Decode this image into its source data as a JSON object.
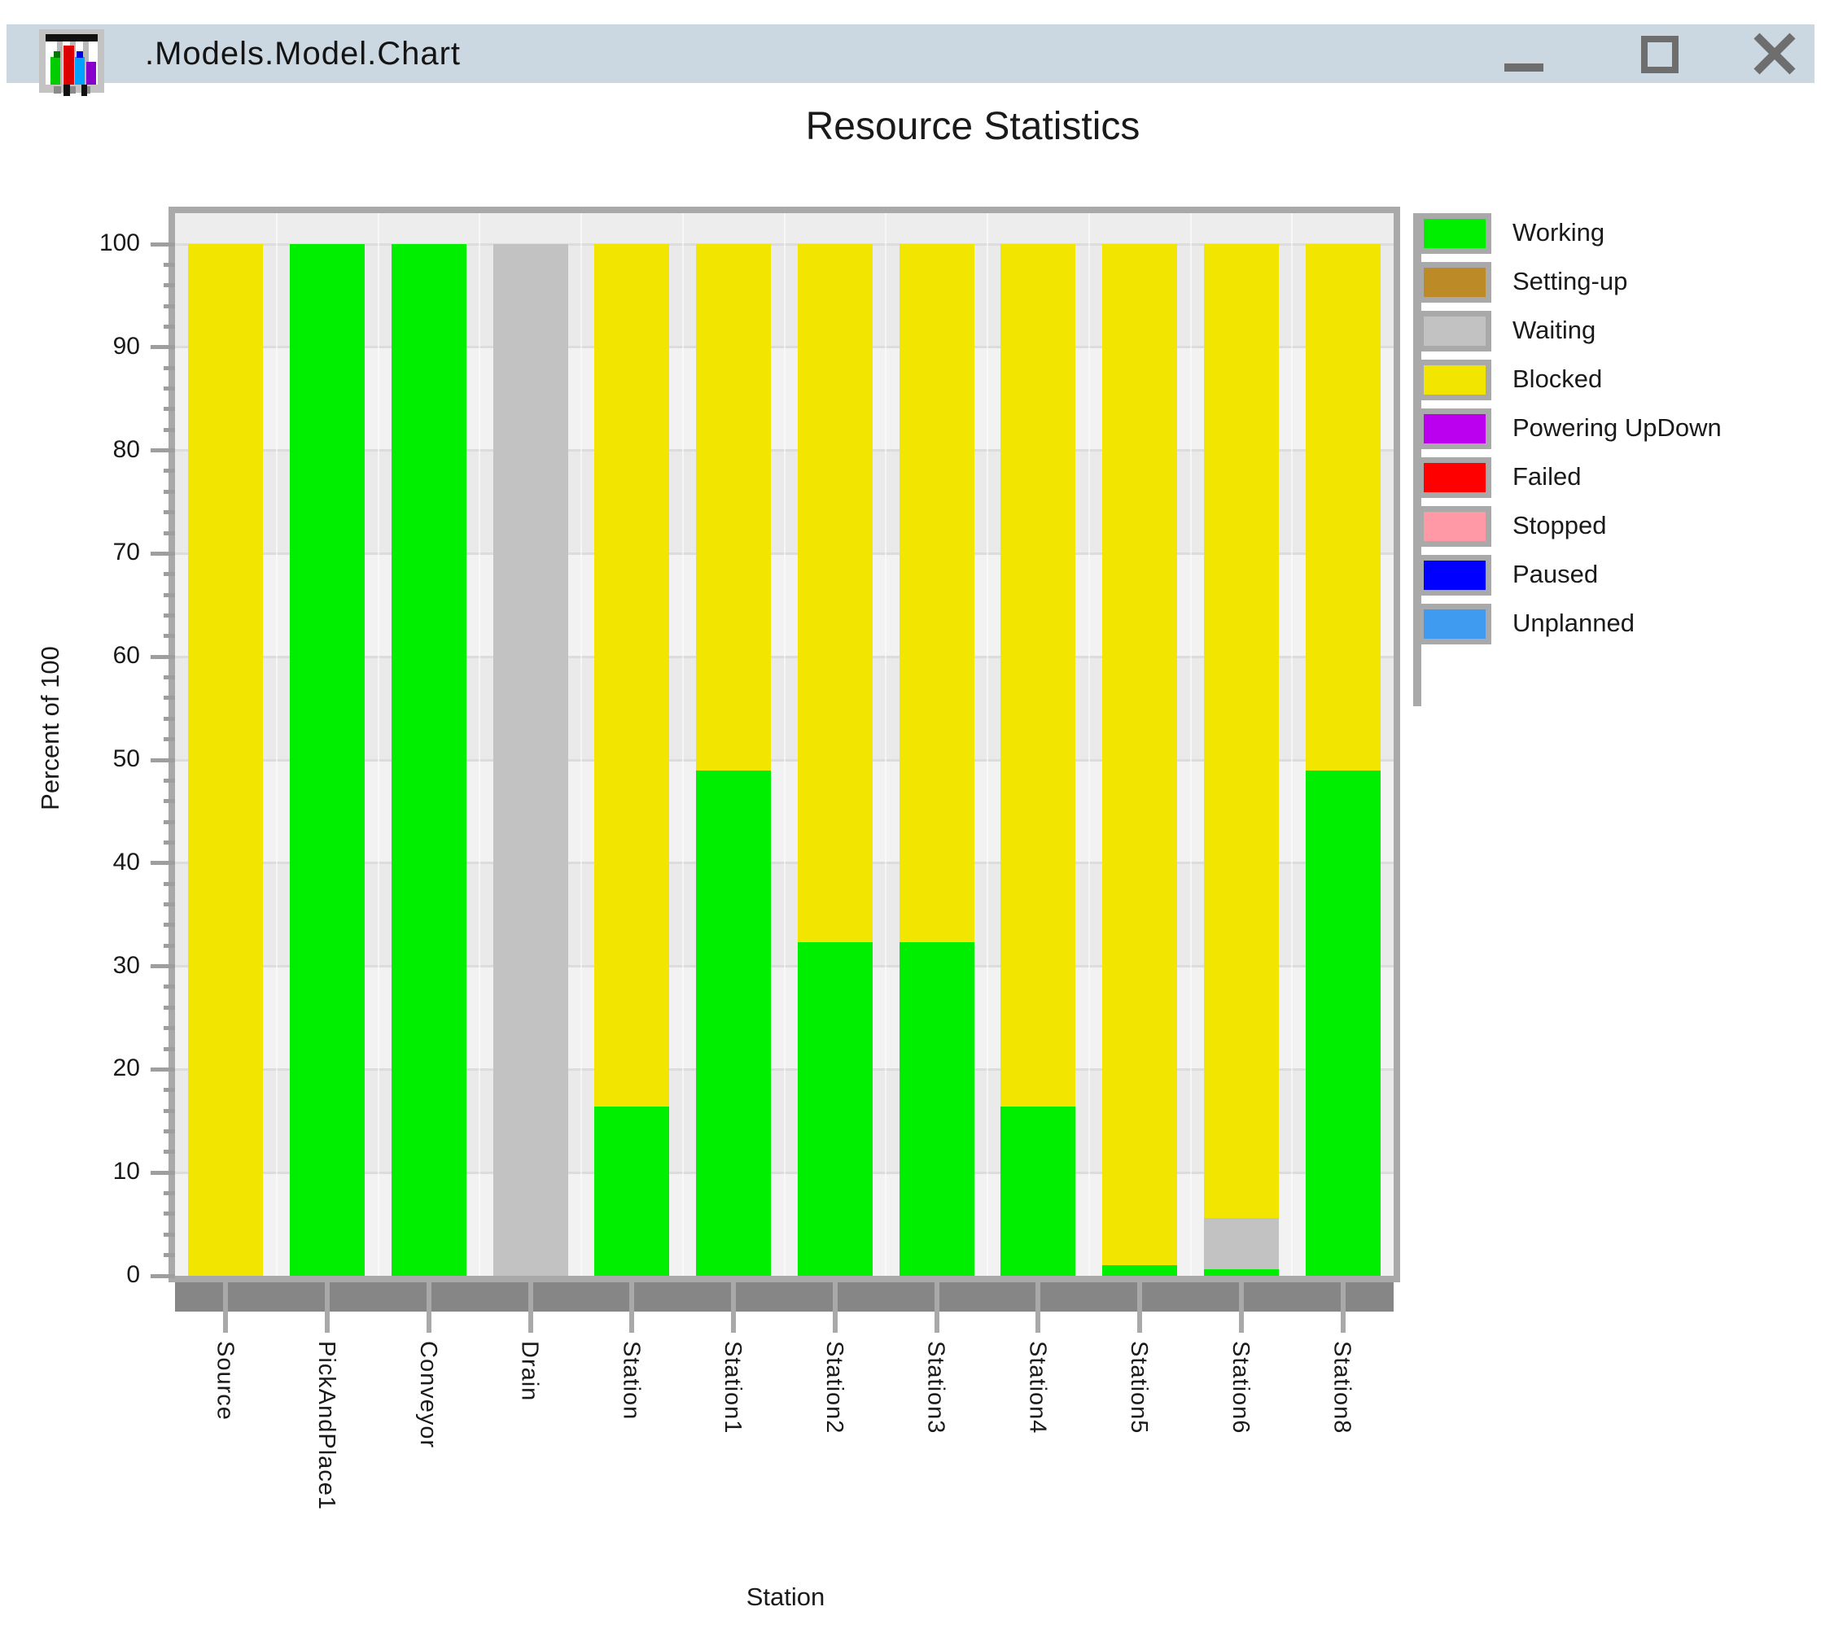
{
  "window": {
    "title": ".Models.Model.Chart",
    "icon": "bar-chart-window-icon",
    "controls": {
      "minimize": "minimize",
      "maximize": "maximize",
      "close": "close"
    },
    "titlebar_color": "#ccd8e1",
    "control_glyph_color": "#6e6e6e"
  },
  "chart_data": {
    "type": "bar",
    "stacked": true,
    "title": "Resource Statistics",
    "xlabel": "Station",
    "ylabel": "Percent of 100",
    "ylim": [
      0,
      100
    ],
    "y_major_tick_step": 10,
    "y_minor_tick_step": 2,
    "y_tick_labels": [
      100,
      90,
      80,
      70,
      60,
      50,
      40,
      30,
      20,
      10,
      0
    ],
    "grid": "horizontal",
    "legend_position": "right",
    "categories": [
      "Source",
      "PickAndPlace1",
      "Conveyor",
      "Drain",
      "Station",
      "Station1",
      "Station2",
      "Station3",
      "Station4",
      "Station5",
      "Station6",
      "Station8"
    ],
    "series": [
      {
        "name": "Working",
        "color": "#00ee00",
        "values": [
          0,
          100,
          100,
          0,
          16.4,
          49,
          32.3,
          32.3,
          16.4,
          1,
          0.6,
          49
        ]
      },
      {
        "name": "Setting-up",
        "color": "#bd8a28",
        "values": [
          0,
          0,
          0,
          0,
          0,
          0,
          0,
          0,
          0,
          0,
          0,
          0
        ]
      },
      {
        "name": "Waiting",
        "color": "#c2c2c2",
        "values": [
          0,
          0,
          0,
          100,
          0,
          0,
          0,
          0,
          0,
          0,
          5,
          0
        ]
      },
      {
        "name": "Blocked",
        "color": "#f2e500",
        "values": [
          100,
          0,
          0,
          0,
          83.6,
          51,
          67.7,
          67.7,
          83.6,
          99,
          94.4,
          51
        ]
      },
      {
        "name": "Powering UpDown",
        "color": "#bb00f0",
        "values": [
          0,
          0,
          0,
          0,
          0,
          0,
          0,
          0,
          0,
          0,
          0,
          0
        ]
      },
      {
        "name": "Failed",
        "color": "#fe0000",
        "values": [
          0,
          0,
          0,
          0,
          0,
          0,
          0,
          0,
          0,
          0,
          0,
          0
        ]
      },
      {
        "name": "Stopped",
        "color": "#ff99a6",
        "values": [
          0,
          0,
          0,
          0,
          0,
          0,
          0,
          0,
          0,
          0,
          0,
          0
        ]
      },
      {
        "name": "Paused",
        "color": "#0000fe",
        "values": [
          0,
          0,
          0,
          0,
          0,
          0,
          0,
          0,
          0,
          0,
          0,
          0
        ]
      },
      {
        "name": "Unplanned",
        "color": "#3f9bf0",
        "values": [
          0,
          0,
          0,
          0,
          0,
          0,
          0,
          0,
          0,
          0,
          0,
          0
        ]
      }
    ],
    "plot_colors": {
      "band_light": "#f2f2f2",
      "band_dark": "#eaeaea",
      "top_margin_band": "#ededed",
      "gridline": "#dcdcdc",
      "frame": "#a9a9a9",
      "axis_strip": "#868686",
      "tick": "#9e9e9e"
    }
  }
}
